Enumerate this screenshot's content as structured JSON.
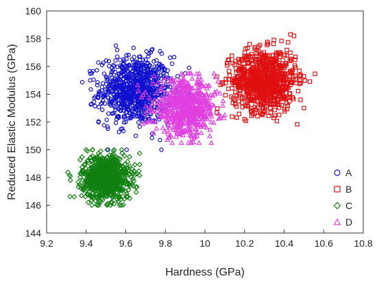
{
  "chart_data": {
    "type": "scatter",
    "title": "",
    "xlabel": "Hardness (GPa)",
    "ylabel": "Reduced Elastic Modulus (GPa)",
    "xlim": [
      9.2,
      10.8
    ],
    "ylim": [
      144,
      160
    ],
    "x_ticks": [
      "9.2",
      "9.4",
      "9.6",
      "9.8",
      "10",
      "10.2",
      "10.4",
      "10.6",
      "10.8"
    ],
    "y_ticks": [
      "144",
      "146",
      "148",
      "150",
      "152",
      "154",
      "156",
      "158",
      "160"
    ],
    "grid": false,
    "legend_position": "right",
    "series": [
      {
        "name": "A",
        "marker": "circle",
        "color": "#1010d0",
        "cluster": {
          "x_mean": 9.65,
          "x_sd": 0.09,
          "y_mean": 154.3,
          "y_sd": 1.2,
          "x_min": 9.38,
          "x_max": 9.92,
          "y_min": 150.0,
          "y_max": 157.5
        },
        "points": [
          [
            9.65,
            154.3
          ],
          [
            9.42,
            155.0
          ],
          [
            9.55,
            157.5
          ],
          [
            9.78,
            150.0
          ],
          [
            9.9,
            155.5
          ],
          [
            9.6,
            152.0
          ],
          [
            9.7,
            156.5
          ]
        ]
      },
      {
        "name": "B",
        "marker": "square",
        "color": "#e01010",
        "cluster": {
          "x_mean": 10.3,
          "x_sd": 0.08,
          "y_mean": 155.0,
          "y_sd": 1.1,
          "x_min": 10.06,
          "x_max": 10.56,
          "y_min": 151.8,
          "y_max": 158.3
        },
        "points": [
          [
            10.3,
            155.0
          ],
          [
            10.45,
            158.2
          ],
          [
            10.12,
            156.5
          ],
          [
            10.5,
            153.0
          ],
          [
            10.2,
            152.2
          ],
          [
            10.38,
            157.0
          ]
        ]
      },
      {
        "name": "C",
        "marker": "diamond",
        "color": "#108010",
        "cluster": {
          "x_mean": 9.5,
          "x_sd": 0.06,
          "y_mean": 148.0,
          "y_sd": 0.8,
          "x_min": 9.3,
          "x_max": 9.67,
          "y_min": 146.0,
          "y_max": 150.0
        },
        "points": [
          [
            9.5,
            148.0
          ],
          [
            9.32,
            148.1
          ],
          [
            9.4,
            150.0
          ],
          [
            9.62,
            146.5
          ],
          [
            9.55,
            149.5
          ],
          [
            9.45,
            146.8
          ]
        ]
      },
      {
        "name": "D",
        "marker": "triangle",
        "color": "#e040e0",
        "cluster": {
          "x_mean": 9.9,
          "x_sd": 0.08,
          "y_mean": 153.0,
          "y_sd": 1.0,
          "x_min": 9.65,
          "x_max": 10.12,
          "y_min": 150.5,
          "y_max": 155.5
        },
        "points": [
          [
            9.9,
            153.0
          ],
          [
            9.75,
            152.0
          ],
          [
            10.05,
            154.0
          ],
          [
            9.95,
            151.0
          ],
          [
            9.85,
            155.0
          ],
          [
            10.1,
            152.5
          ]
        ]
      }
    ]
  }
}
